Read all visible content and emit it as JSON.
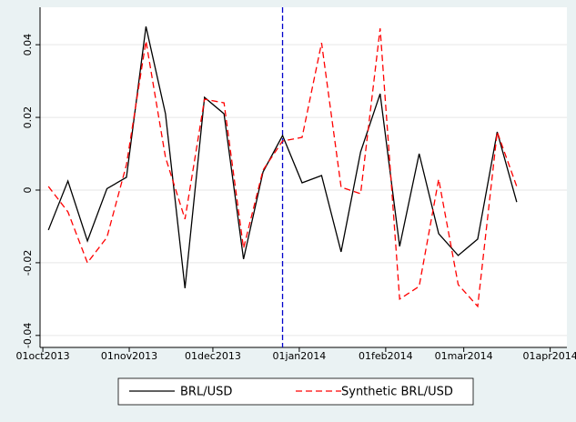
{
  "chart_data": {
    "type": "line",
    "x": [
      "2013-10-03",
      "2013-10-10",
      "2013-10-17",
      "2013-10-24",
      "2013-10-31",
      "2013-11-07",
      "2013-11-14",
      "2013-11-21",
      "2013-11-28",
      "2013-12-05",
      "2013-12-12",
      "2013-12-19",
      "2013-12-26",
      "2014-01-02",
      "2014-01-09",
      "2014-01-16",
      "2014-01-23",
      "2014-01-30",
      "2014-02-06",
      "2014-02-13",
      "2014-02-20",
      "2014-02-27",
      "2014-03-06",
      "2014-03-13",
      "2014-03-20"
    ],
    "series": [
      {
        "name": "BRL/USD",
        "color": "#000000",
        "dash": "solid",
        "values": [
          -0.011,
          0.0025,
          -0.014,
          0.0004,
          0.0035,
          0.045,
          0.021,
          -0.027,
          0.0255,
          0.021,
          -0.019,
          0.005,
          0.015,
          0.002,
          0.004,
          -0.017,
          0.0105,
          0.0265,
          -0.0155,
          0.01,
          -0.012,
          -0.018,
          -0.0135,
          0.016,
          -0.0033
        ]
      },
      {
        "name": "Synthetic BRL/USD",
        "color": "#ff0000",
        "dash": "dashed",
        "values": [
          0.001,
          -0.006,
          -0.02,
          -0.013,
          0.007,
          0.041,
          0.009,
          -0.008,
          0.025,
          0.024,
          -0.016,
          0.0055,
          0.0135,
          0.0145,
          0.0405,
          0.0008,
          -0.001,
          0.0445,
          -0.03,
          -0.0265,
          0.003,
          -0.026,
          -0.032,
          0.016,
          0.001
        ]
      }
    ],
    "reference_line": {
      "x": "2013-12-26",
      "color": "#0000cc"
    },
    "xlim": [
      "2013-09-30",
      "2014-04-07"
    ],
    "xticks": [
      {
        "value": "2013-10-01",
        "label": "01oct2013"
      },
      {
        "value": "2013-11-01",
        "label": "01nov2013"
      },
      {
        "value": "2013-12-01",
        "label": "01dec2013"
      },
      {
        "value": "2014-01-01",
        "label": "01jan2014"
      },
      {
        "value": "2014-02-01",
        "label": "01feb2014"
      },
      {
        "value": "2014-03-01",
        "label": "01mar2014"
      },
      {
        "value": "2014-04-01",
        "label": "01apr2014"
      }
    ],
    "ylim": [
      -0.0433,
      0.0503
    ],
    "yticks": [
      -0.04,
      -0.02,
      0,
      0.02,
      0.04
    ],
    "grid": true
  }
}
